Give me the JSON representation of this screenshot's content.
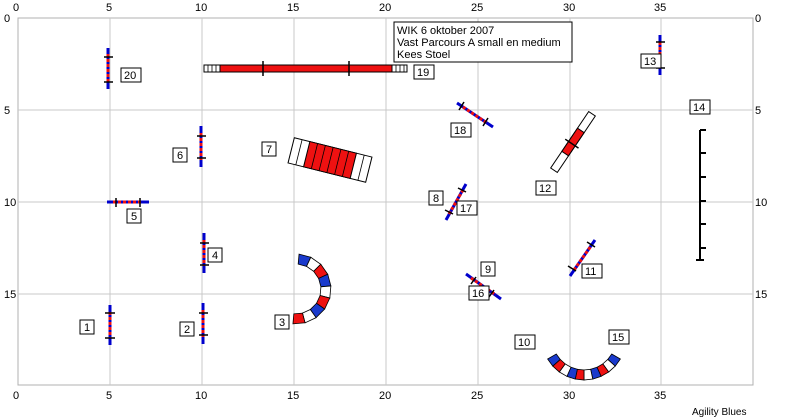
{
  "info": {
    "line1": "WIK 6 oktober 2007",
    "line2": "Vast Parcours A small en medium",
    "line3": "Kees Stoel"
  },
  "credit": "Agility Blues",
  "axes": {
    "x_ticks": [
      "0",
      "5",
      "10",
      "15",
      "20",
      "25",
      "30",
      "35"
    ],
    "y_ticks_left": [
      "0",
      "5",
      "10",
      "15"
    ],
    "y_ticks_right": [
      "0",
      "5",
      "10",
      "15"
    ],
    "x_ticks_bottom": [
      "0",
      "5",
      "10",
      "15",
      "20",
      "25",
      "30",
      "35"
    ]
  },
  "obstacle_numbers": [
    "1",
    "2",
    "3",
    "4",
    "5",
    "6",
    "7",
    "8",
    "9",
    "10",
    "11",
    "12",
    "13",
    "14",
    "15",
    "16",
    "17",
    "18",
    "19",
    "20"
  ],
  "colors": {
    "pole_red": "#ee1111",
    "stand_blue": "#0000cc",
    "grid": "#c8c8c8"
  }
}
